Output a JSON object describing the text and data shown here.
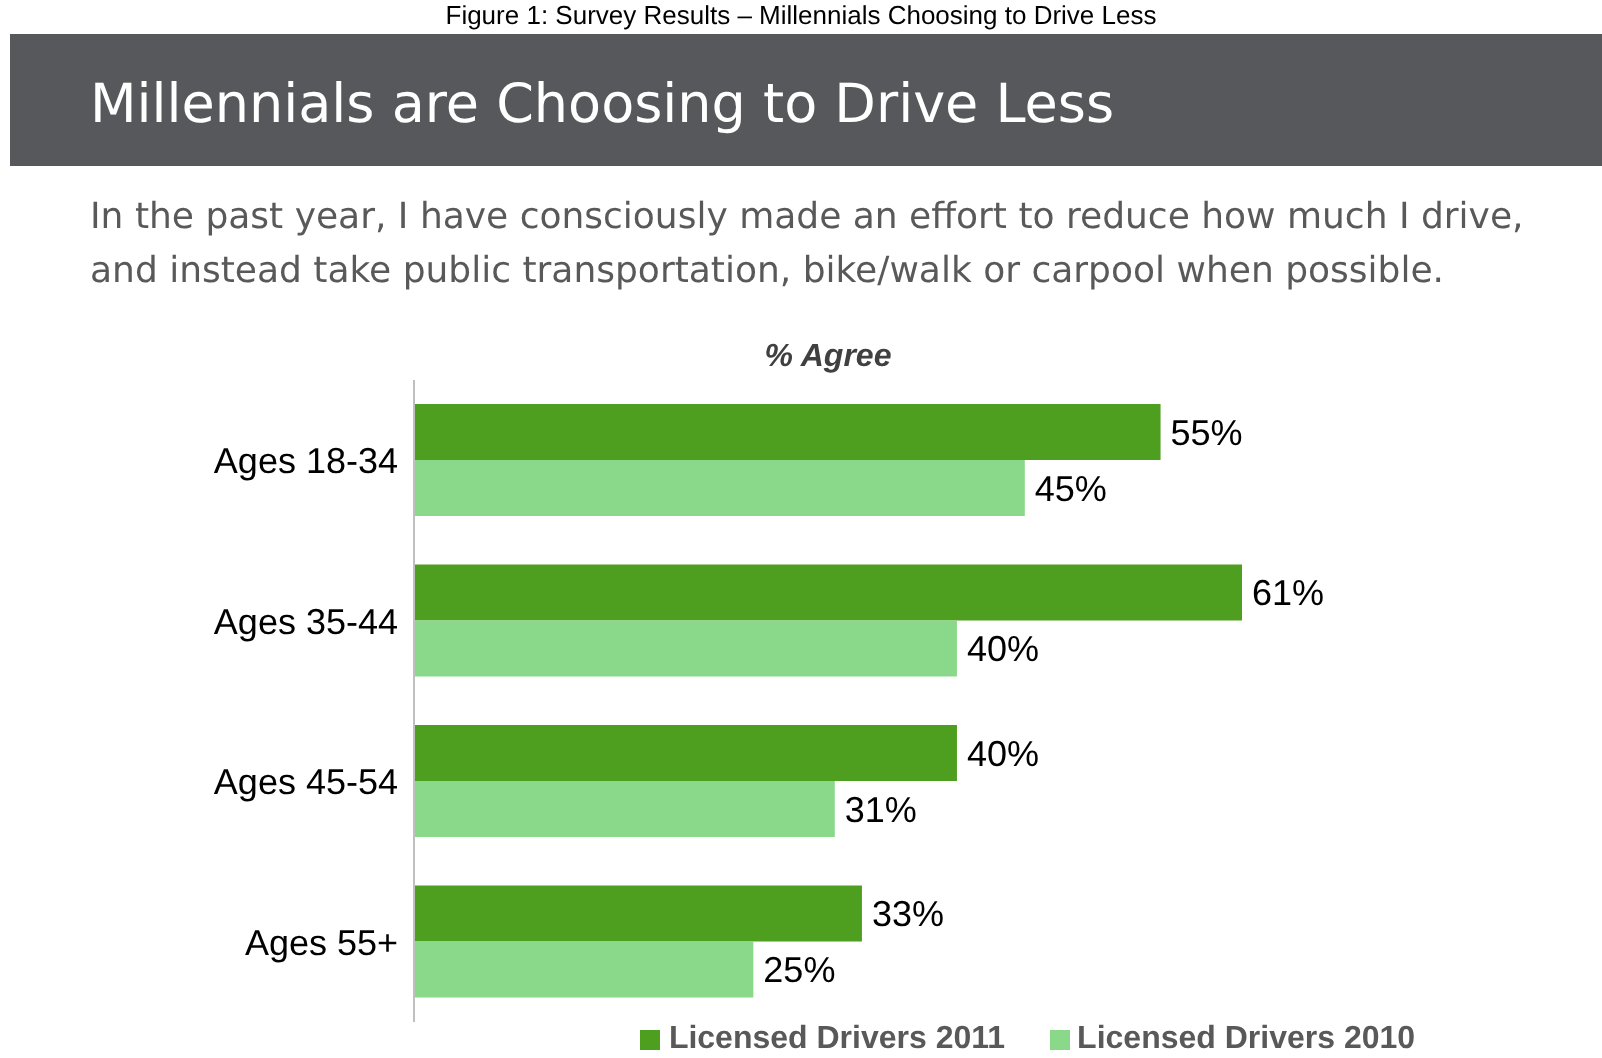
{
  "chart_data": {
    "type": "bar",
    "orientation": "horizontal",
    "title": "Millennials are Choosing to Drive Less",
    "subtitle": "In the past year, I have consciously made an effort to reduce how much I drive, and instead take public transportation, bike/walk or carpool when possible.",
    "xlabel": "% Agree",
    "annotations": [
      "Figure 1: Survey Results – Millennials Choosing to Drive Less"
    ],
    "categories": [
      "Ages 18-34",
      "Ages 35-44",
      "Ages 45-54",
      "Ages 55+"
    ],
    "series": [
      {
        "name": "Licensed Drivers 2011",
        "color": "#4e9f1f",
        "values": [
          55,
          61,
          40,
          33
        ],
        "value_labels": [
          "55%",
          "61%",
          "40%",
          "33%"
        ]
      },
      {
        "name": "Licensed Drivers 2010",
        "color": "#8ad98a",
        "values": [
          45,
          40,
          31,
          25
        ],
        "value_labels": [
          "45%",
          "40%",
          "31%",
          "25%"
        ]
      }
    ],
    "legend": "bottom",
    "grid": false
  }
}
